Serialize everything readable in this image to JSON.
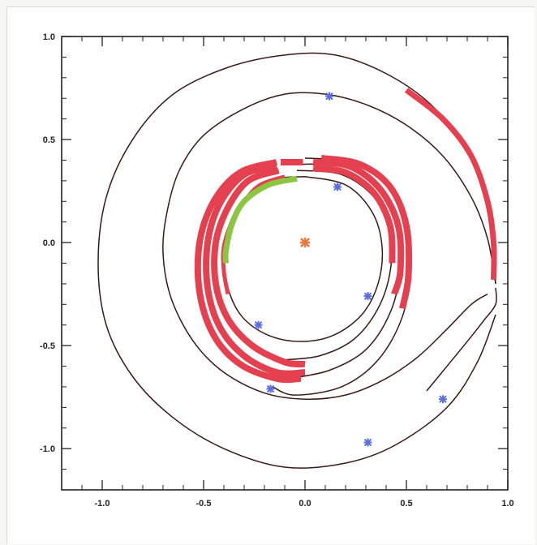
{
  "chart_data": {
    "type": "line",
    "title": "",
    "xlabel": "",
    "ylabel": "",
    "xlim": [
      -1.2,
      1.0
    ],
    "ylim": [
      -1.2,
      1.0
    ],
    "x_ticks": [
      "-1.0",
      "-0.5",
      "0.0",
      "0.5",
      "1.0"
    ],
    "y_ticks": [
      "-1.0",
      "-0.5",
      "0.0",
      "0.5",
      "1.0"
    ],
    "x_tick_values": [
      -1.0,
      -0.5,
      0.0,
      0.5,
      1.0
    ],
    "y_tick_values": [
      -1.0,
      -0.5,
      0.0,
      0.5,
      1.0
    ],
    "grid": false,
    "colors": {
      "orbit": "#3a1a14",
      "red_band": "#e5404f",
      "green_band": "#8ac640",
      "marker": "#5b6ee0",
      "center": "#f07840"
    },
    "orbits": [
      {
        "name": "",
        "points": [
          [
            0.94,
            -0.2
          ],
          [
            0.9,
            0.2
          ],
          [
            0.8,
            0.45
          ],
          [
            0.62,
            0.67
          ],
          [
            0.4,
            0.82
          ],
          [
            0.15,
            0.91
          ],
          [
            -0.1,
            0.91
          ],
          [
            -0.38,
            0.85
          ],
          [
            -0.65,
            0.72
          ],
          [
            -0.85,
            0.5
          ],
          [
            -0.98,
            0.22
          ],
          [
            -1.02,
            -0.1
          ],
          [
            -0.98,
            -0.4
          ],
          [
            -0.85,
            -0.65
          ],
          [
            -0.65,
            -0.85
          ],
          [
            -0.4,
            -1.0
          ],
          [
            -0.1,
            -1.09
          ],
          [
            0.2,
            -1.07
          ],
          [
            0.45,
            -0.98
          ],
          [
            0.7,
            -0.8
          ],
          [
            0.85,
            -0.58
          ],
          [
            0.94,
            -0.35
          ]
        ]
      },
      {
        "name": "",
        "points": [
          [
            0.94,
            -0.2
          ],
          [
            0.9,
            0.02
          ],
          [
            0.82,
            0.22
          ],
          [
            0.68,
            0.42
          ],
          [
            0.5,
            0.57
          ],
          [
            0.3,
            0.67
          ],
          [
            0.1,
            0.72
          ],
          [
            -0.1,
            0.72
          ],
          [
            -0.3,
            0.65
          ],
          [
            -0.5,
            0.52
          ],
          [
            -0.62,
            0.35
          ],
          [
            -0.68,
            0.15
          ],
          [
            -0.7,
            -0.05
          ],
          [
            -0.66,
            -0.27
          ],
          [
            -0.55,
            -0.48
          ],
          [
            -0.4,
            -0.63
          ],
          [
            -0.2,
            -0.73
          ],
          [
            0.0,
            -0.76
          ],
          [
            0.2,
            -0.74
          ],
          [
            0.38,
            -0.67
          ],
          [
            0.55,
            -0.56
          ],
          [
            0.7,
            -0.42
          ],
          [
            0.82,
            -0.3
          ],
          [
            0.9,
            -0.25
          ]
        ]
      },
      {
        "name": "",
        "points": [
          [
            0.6,
            -0.72
          ],
          [
            0.7,
            -0.6
          ],
          [
            0.8,
            -0.48
          ],
          [
            0.88,
            -0.38
          ],
          [
            0.94,
            -0.3
          ],
          [
            0.94,
            -0.22
          ]
        ]
      },
      {
        "name": "",
        "points": [
          [
            0.0,
            0.32
          ],
          [
            0.2,
            0.28
          ],
          [
            0.33,
            0.15
          ],
          [
            0.38,
            -0.02
          ],
          [
            0.36,
            -0.2
          ],
          [
            0.28,
            -0.35
          ],
          [
            0.14,
            -0.45
          ],
          [
            -0.02,
            -0.48
          ],
          [
            -0.18,
            -0.45
          ],
          [
            -0.31,
            -0.36
          ],
          [
            -0.38,
            -0.22
          ],
          [
            -0.4,
            -0.05
          ],
          [
            -0.36,
            0.12
          ],
          [
            -0.26,
            0.25
          ],
          [
            -0.14,
            0.31
          ],
          [
            0.0,
            0.32
          ]
        ]
      },
      {
        "name": "",
        "points": [
          [
            -0.04,
            0.35
          ],
          [
            0.18,
            0.33
          ],
          [
            0.34,
            0.22
          ],
          [
            0.42,
            0.05
          ],
          [
            0.42,
            -0.14
          ],
          [
            0.36,
            -0.32
          ],
          [
            0.24,
            -0.47
          ],
          [
            0.07,
            -0.55
          ],
          [
            -0.12,
            -0.57
          ]
        ]
      },
      {
        "name": "",
        "points": [
          [
            -0.05,
            0.38
          ],
          [
            0.18,
            0.37
          ],
          [
            0.36,
            0.27
          ],
          [
            0.46,
            0.08
          ],
          [
            0.47,
            -0.13
          ],
          [
            0.42,
            -0.34
          ],
          [
            0.3,
            -0.52
          ],
          [
            0.12,
            -0.62
          ],
          [
            -0.08,
            -0.66
          ]
        ]
      },
      {
        "name": "",
        "points": [
          [
            0.0,
            0.41
          ],
          [
            0.22,
            0.39
          ],
          [
            0.4,
            0.29
          ],
          [
            0.5,
            0.1
          ],
          [
            0.52,
            -0.12
          ],
          [
            0.48,
            -0.36
          ],
          [
            0.36,
            -0.57
          ],
          [
            0.18,
            -0.7
          ],
          [
            -0.05,
            -0.74
          ],
          [
            -0.16,
            -0.7
          ]
        ]
      }
    ],
    "red_segments": [
      {
        "points": [
          [
            0.5,
            0.74
          ],
          [
            0.68,
            0.6
          ],
          [
            0.82,
            0.42
          ],
          [
            0.9,
            0.2
          ],
          [
            0.93,
            0.0
          ],
          [
            0.93,
            -0.18
          ]
        ],
        "width": 7
      },
      {
        "points": [
          [
            -0.1,
            0.32
          ],
          [
            -0.22,
            0.28
          ],
          [
            -0.3,
            0.2
          ],
          [
            -0.36,
            0.1
          ],
          [
            -0.4,
            -0.02
          ],
          [
            -0.4,
            -0.14
          ],
          [
            -0.38,
            -0.25
          ]
        ],
        "width": 5
      },
      {
        "points": [
          [
            -0.13,
            0.35
          ],
          [
            -0.28,
            0.3
          ],
          [
            -0.38,
            0.17
          ],
          [
            -0.44,
            0.0
          ],
          [
            -0.44,
            -0.2
          ],
          [
            -0.38,
            -0.37
          ],
          [
            -0.26,
            -0.5
          ],
          [
            -0.1,
            -0.58
          ],
          [
            0.0,
            -0.59
          ]
        ],
        "width": 8
      },
      {
        "points": [
          [
            -0.14,
            0.37
          ],
          [
            -0.3,
            0.33
          ],
          [
            -0.42,
            0.19
          ],
          [
            -0.48,
            0.0
          ],
          [
            -0.48,
            -0.22
          ],
          [
            -0.42,
            -0.41
          ],
          [
            -0.3,
            -0.55
          ],
          [
            -0.14,
            -0.63
          ],
          [
            0.0,
            -0.63
          ]
        ],
        "width": 8
      },
      {
        "points": [
          [
            -0.14,
            0.39
          ],
          [
            -0.32,
            0.34
          ],
          [
            -0.45,
            0.2
          ],
          [
            -0.52,
            0.0
          ],
          [
            -0.52,
            -0.24
          ],
          [
            -0.45,
            -0.45
          ],
          [
            -0.32,
            -0.59
          ],
          [
            -0.14,
            -0.66
          ],
          [
            -0.02,
            -0.66
          ]
        ],
        "width": 8
      },
      {
        "points": [
          [
            -0.12,
            0.39
          ],
          [
            -0.01,
            0.39
          ]
        ],
        "width": 8
      },
      {
        "points": [
          [
            0.04,
            0.36
          ],
          [
            0.2,
            0.34
          ],
          [
            0.34,
            0.24
          ],
          [
            0.42,
            0.08
          ],
          [
            0.43,
            -0.1
          ]
        ],
        "width": 8
      },
      {
        "points": [
          [
            0.04,
            0.39
          ],
          [
            0.22,
            0.37
          ],
          [
            0.37,
            0.26
          ],
          [
            0.46,
            0.08
          ],
          [
            0.47,
            -0.14
          ],
          [
            0.44,
            -0.25
          ]
        ],
        "width": 8
      },
      {
        "points": [
          [
            0.08,
            0.41
          ],
          [
            0.27,
            0.38
          ],
          [
            0.42,
            0.27
          ],
          [
            0.5,
            0.08
          ],
          [
            0.51,
            -0.16
          ],
          [
            0.48,
            -0.32
          ]
        ],
        "width": 8
      }
    ],
    "green_segment": {
      "points": [
        [
          -0.04,
          0.31
        ],
        [
          -0.18,
          0.28
        ],
        [
          -0.3,
          0.2
        ],
        [
          -0.36,
          0.09
        ],
        [
          -0.39,
          -0.04
        ],
        [
          -0.39,
          -0.1
        ]
      ],
      "width": 7
    },
    "markers": [
      [
        0.12,
        0.71
      ],
      [
        0.16,
        0.27
      ],
      [
        0.31,
        -0.26
      ],
      [
        -0.23,
        -0.4
      ],
      [
        -0.17,
        -0.71
      ],
      [
        0.68,
        -0.76
      ],
      [
        0.31,
        -0.97
      ]
    ],
    "center_marker": [
      0.0,
      0.0
    ]
  }
}
